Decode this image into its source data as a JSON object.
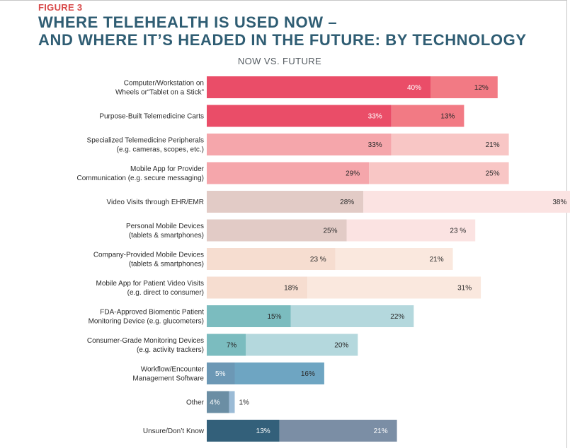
{
  "figure_label": "FIGURE 3",
  "title_line1": "WHERE TELEHEALTH IS USED NOW –",
  "title_line2": "AND WHERE IT’S HEADED IN THE FUTURE: BY TECHNOLOGY",
  "chart_data": {
    "type": "bar",
    "orientation": "horizontal",
    "stacked": true,
    "title": "NOW VS. FUTURE",
    "categories": [
      [
        "Computer/Workstation on",
        "Wheels or“Tablet on a Stick”"
      ],
      [
        "Purpose-Built Telemedicine Carts"
      ],
      [
        "Specialized Telemedicine Peripherals",
        "(e.g. cameras, scopes, etc.)"
      ],
      [
        "Mobile App for Provider",
        "Communication (e.g. secure messaging)"
      ],
      [
        "Video Visits through EHR/EMR"
      ],
      [
        "Personal Mobile Devices",
        "(tablets & smartphones)"
      ],
      [
        "Company-Provided Mobile Devices",
        "(tablets & smartphones)"
      ],
      [
        "Mobile App for Patient Video Visits",
        "(e.g. direct to consumer)"
      ],
      [
        "FDA-Approved Biomentic Patient",
        "Monitoring Device (e.g. glucometers)"
      ],
      [
        "Consumer-Grade Monitoring Devices",
        "(e.g. activity trackers)"
      ],
      [
        "Workflow/Encounter",
        "Management Software"
      ],
      [
        "Other"
      ],
      [
        "Unsure/Don’t Know"
      ]
    ],
    "series": [
      {
        "values": [
          40,
          33,
          33,
          29,
          28,
          25,
          23,
          18,
          15,
          7,
          5,
          4,
          13
        ],
        "value_labels": [
          "40%",
          "33%",
          "33%",
          "29%",
          "28%",
          "25%",
          "23 %",
          "18%",
          "15%",
          "7%",
          "5%",
          "4%",
          "13%"
        ]
      },
      {
        "values": [
          12,
          13,
          21,
          25,
          38,
          23,
          21,
          31,
          22,
          20,
          16,
          1,
          21
        ],
        "value_labels": [
          "12%",
          "13%",
          "21%",
          "25%",
          "38%",
          "23  %",
          "21%",
          "31%",
          "22%",
          "20%",
          "16%",
          "1%",
          "21%"
        ]
      }
    ],
    "colors_now": [
      "#ea4d68",
      "#ea4d68",
      "#f5a6ab",
      "#f5a6ab",
      "#e2cbc6",
      "#e2cbc6",
      "#f6ddd0",
      "#f6ddd0",
      "#7bbcbf",
      "#7bbcbf",
      "#6c98b5",
      "#6b8ea4",
      "#33607a"
    ],
    "colors_future": [
      "#f27a84",
      "#f27a84",
      "#f8c6c5",
      "#f8c6c5",
      "#fbe3e2",
      "#fbe3e2",
      "#fae8de",
      "#fae8de",
      "#b4d8dd",
      "#b4d8dd",
      "#6ea5c2",
      "#9bbbd6",
      "#7b8ea5"
    ],
    "light_label_now": [
      true,
      true,
      false,
      false,
      false,
      false,
      false,
      false,
      false,
      false,
      true,
      true,
      true
    ],
    "light_label_future": [
      false,
      false,
      false,
      false,
      false,
      false,
      false,
      false,
      false,
      false,
      false,
      false,
      true
    ],
    "future_label_outside": [
      false,
      false,
      false,
      false,
      false,
      false,
      false,
      false,
      false,
      false,
      false,
      true,
      false
    ],
    "xlim": [
      0,
      100
    ],
    "grid": false,
    "legend": "none"
  }
}
